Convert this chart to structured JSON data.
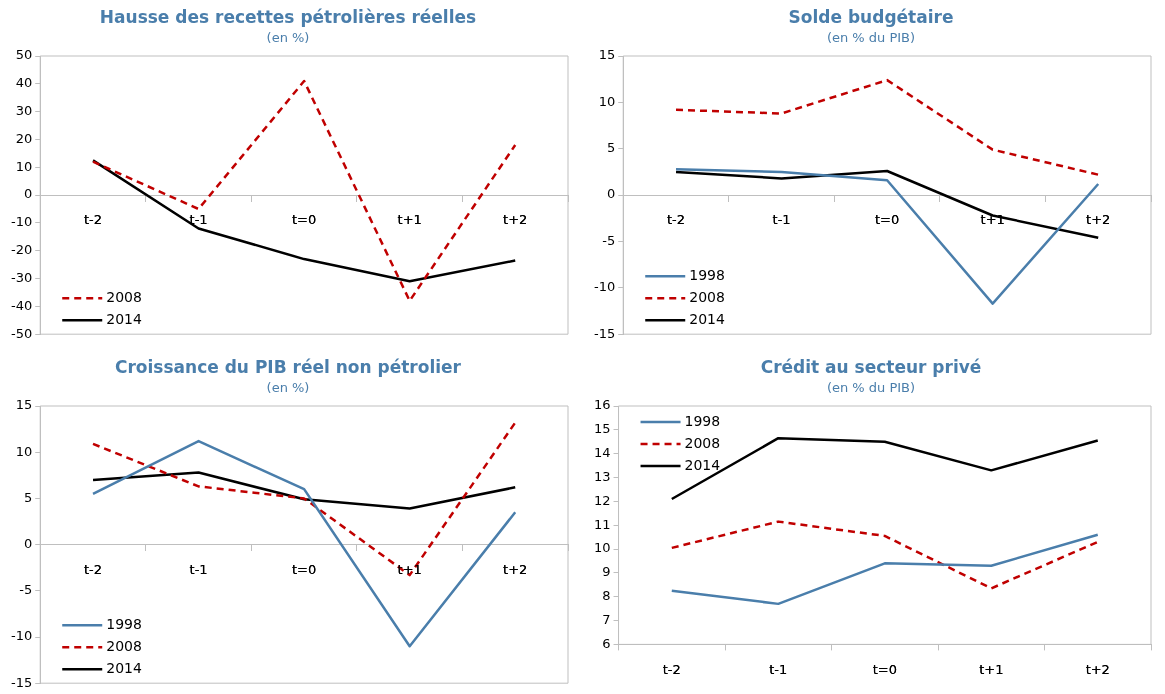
{
  "chart_data": [
    {
      "type": "line",
      "title": "Hausse des recettes pétrolières réelles",
      "subtitle": "(en %)",
      "categories": [
        "t-2",
        "t-1",
        "t=0",
        "t+1",
        "t+2"
      ],
      "ylim": [
        -50,
        50
      ],
      "yticks": [
        -50,
        -40,
        -30,
        -20,
        -10,
        0,
        10,
        20,
        30,
        40,
        50
      ],
      "legend": "bottom left",
      "grid": false,
      "marker": "none",
      "series": [
        {
          "name": "2008",
          "color": "#c00000",
          "line_style": "dashed",
          "values": [
            12,
            -5,
            41,
            -38,
            18
          ]
        },
        {
          "name": "2014",
          "color": "#000000",
          "line_style": "solid",
          "values": [
            12.5,
            -12,
            -23,
            -31,
            -23.5
          ]
        }
      ]
    },
    {
      "type": "line",
      "title": "Solde budgétaire",
      "subtitle": "(en % du PIB)",
      "categories": [
        "t-2",
        "t-1",
        "t=0",
        "t+1",
        "t+2"
      ],
      "ylim": [
        -15,
        15
      ],
      "yticks": [
        -15,
        -10,
        -5,
        0,
        5,
        10,
        15
      ],
      "legend": "bottom left",
      "grid": false,
      "marker": "none",
      "series": [
        {
          "name": "1998",
          "color": "#4a7eab",
          "line_style": "solid",
          "values": [
            2.8,
            2.5,
            1.6,
            -11.7,
            1.2
          ]
        },
        {
          "name": "2008",
          "color": "#c00000",
          "line_style": "dashed",
          "values": [
            9.2,
            8.8,
            12.4,
            4.9,
            2.2
          ]
        },
        {
          "name": "2014",
          "color": "#000000",
          "line_style": "solid",
          "values": [
            2.5,
            1.8,
            2.6,
            -2.2,
            -4.6
          ]
        }
      ]
    },
    {
      "type": "line",
      "title": "Croissance du PIB réel non pétrolier",
      "subtitle": "(en %)",
      "categories": [
        "t-2",
        "t-1",
        "t=0",
        "t+1",
        "t+2"
      ],
      "ylim": [
        -15,
        15
      ],
      "yticks": [
        -15,
        -10,
        -5,
        0,
        5,
        10,
        15
      ],
      "legend": "bottom left",
      "grid": false,
      "marker": "none",
      "series": [
        {
          "name": "1998",
          "color": "#4a7eab",
          "line_style": "solid",
          "values": [
            5.5,
            11.2,
            6,
            -11,
            3.5
          ]
        },
        {
          "name": "2008",
          "color": "#c00000",
          "line_style": "dashed",
          "values": [
            10.9,
            6.3,
            5,
            -3.3,
            13.2
          ]
        },
        {
          "name": "2014",
          "color": "#000000",
          "line_style": "solid",
          "values": [
            7,
            7.8,
            4.9,
            3.9,
            6.2
          ]
        }
      ]
    },
    {
      "type": "line",
      "title": "Crédit au secteur privé",
      "subtitle": "(en % du PIB)",
      "categories": [
        "t-2",
        "t-1",
        "t=0",
        "t+1",
        "t+2"
      ],
      "ylim": [
        6,
        16
      ],
      "yticks": [
        6,
        7,
        8,
        9,
        10,
        11,
        12,
        13,
        14,
        15,
        16
      ],
      "legend": "top left",
      "grid": false,
      "marker": "none",
      "series": [
        {
          "name": "1998",
          "color": "#4a7eab",
          "line_style": "solid",
          "values": [
            8.25,
            7.7,
            9.4,
            9.3,
            10.6
          ]
        },
        {
          "name": "2008",
          "color": "#c00000",
          "line_style": "dashed",
          "values": [
            10.05,
            11.15,
            10.55,
            8.35,
            10.3
          ]
        },
        {
          "name": "2014",
          "color": "#000000",
          "line_style": "solid",
          "values": [
            12.1,
            14.65,
            14.5,
            13.3,
            14.55
          ]
        }
      ]
    }
  ]
}
